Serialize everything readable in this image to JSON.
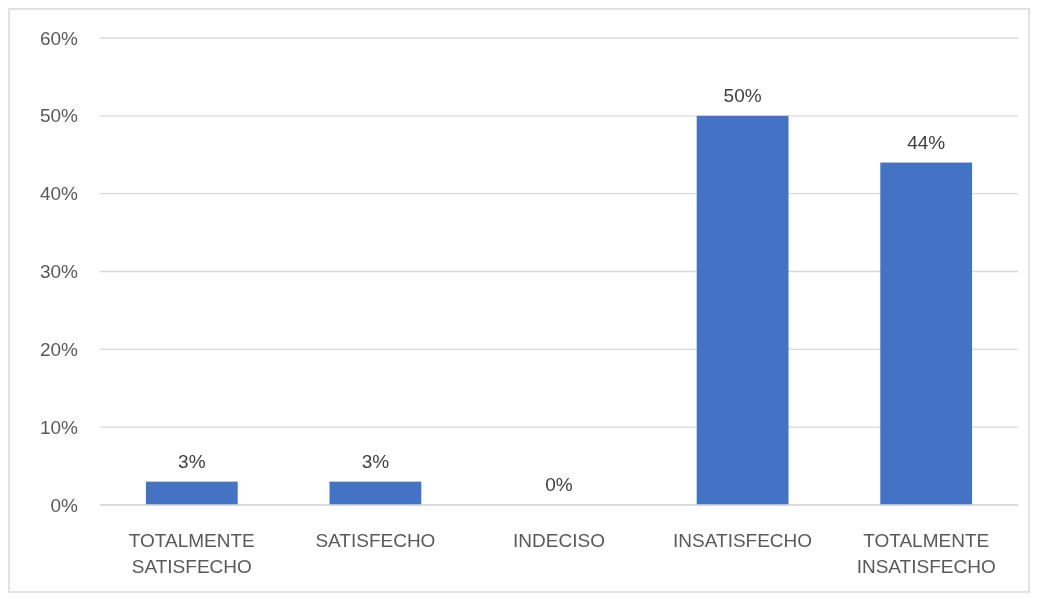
{
  "chart_data": {
    "type": "bar",
    "categories": [
      "TOTALMENTE SATISFECHO",
      "SATISFECHO",
      "INDECISO",
      "INSATISFECHO",
      "TOTALMENTE INSATISFECHO"
    ],
    "values": [
      3,
      3,
      0,
      50,
      44
    ],
    "value_labels": [
      "3%",
      "3%",
      "0%",
      "50%",
      "44%"
    ],
    "color": "#4472c4",
    "ylim": [
      0,
      60
    ],
    "yticks": [
      {
        "value": 0,
        "label": "0%"
      },
      {
        "value": 10,
        "label": "10%"
      },
      {
        "value": 20,
        "label": "20%"
      },
      {
        "value": 30,
        "label": "30%"
      },
      {
        "value": 40,
        "label": "40%"
      },
      {
        "value": 50,
        "label": "50%"
      },
      {
        "value": 60,
        "label": "60%"
      }
    ],
    "grid": "y"
  }
}
